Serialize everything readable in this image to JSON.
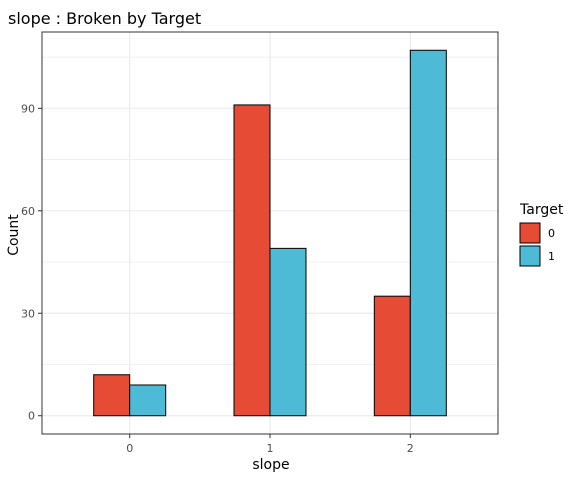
{
  "chart_data": {
    "type": "bar",
    "title": "slope : Broken by Target",
    "xlabel": "slope",
    "ylabel": "Count",
    "categories": [
      "0",
      "1",
      "2"
    ],
    "series": [
      {
        "name": "0",
        "values": [
          12,
          91,
          35
        ],
        "color": "#E64B35"
      },
      {
        "name": "1",
        "values": [
          9,
          49,
          107
        ],
        "color": "#4DBBD5"
      }
    ],
    "yticks": [
      0,
      30,
      60,
      90
    ],
    "ylim": [
      -5.35,
      112.35
    ],
    "grid": true,
    "legend": {
      "title": "Target",
      "position": "right",
      "entries": [
        "0",
        "1"
      ]
    },
    "theme": {
      "bar_outline": "#000000",
      "grid_color": "#ebebeb",
      "panel_border": "#333333"
    }
  }
}
